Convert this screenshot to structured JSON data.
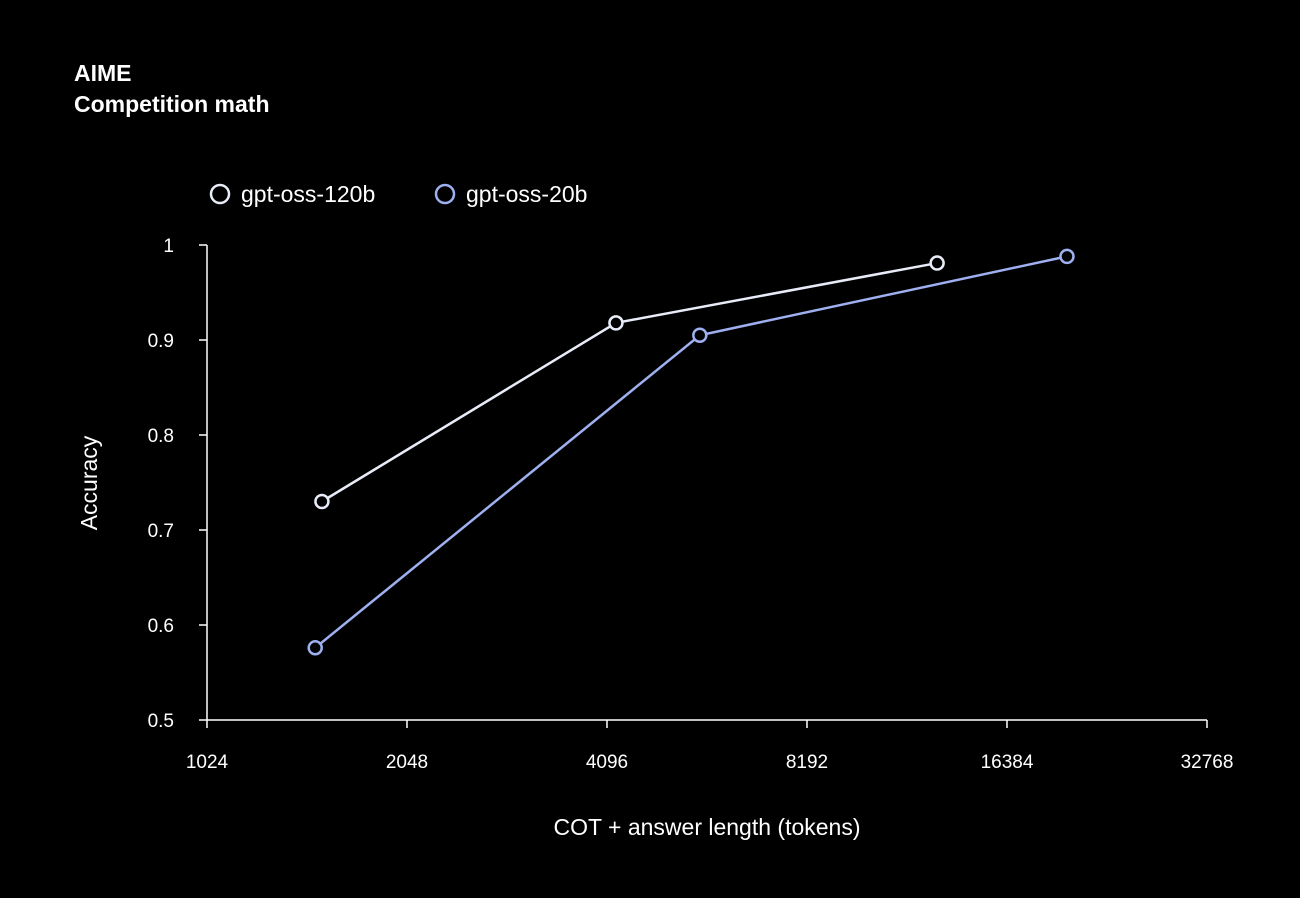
{
  "chart_data": {
    "type": "line",
    "title": "AIME",
    "subtitle": "Competition math",
    "xlabel": "COT + answer length (tokens)",
    "ylabel": "Accuracy",
    "x_scale": "log2",
    "xlim": [
      1024,
      32768
    ],
    "ylim": [
      0.5,
      1
    ],
    "x_ticks": [
      "1024",
      "2048",
      "4096",
      "8192",
      "16384",
      "32768"
    ],
    "y_ticks": [
      "0.5",
      "0.6",
      "0.7",
      "0.8",
      "0.9",
      "1"
    ],
    "grid": false,
    "legend_position": "top-left",
    "series": [
      {
        "name": "gpt-oss-120b",
        "color": "#e8ecf8",
        "x": [
          1525,
          4225,
          12860
        ],
        "y": [
          0.73,
          0.918,
          0.981
        ]
      },
      {
        "name": "gpt-oss-20b",
        "color": "#9fb0f0",
        "x": [
          1490,
          5650,
          20170
        ],
        "y": [
          0.576,
          0.905,
          0.988
        ]
      }
    ]
  }
}
